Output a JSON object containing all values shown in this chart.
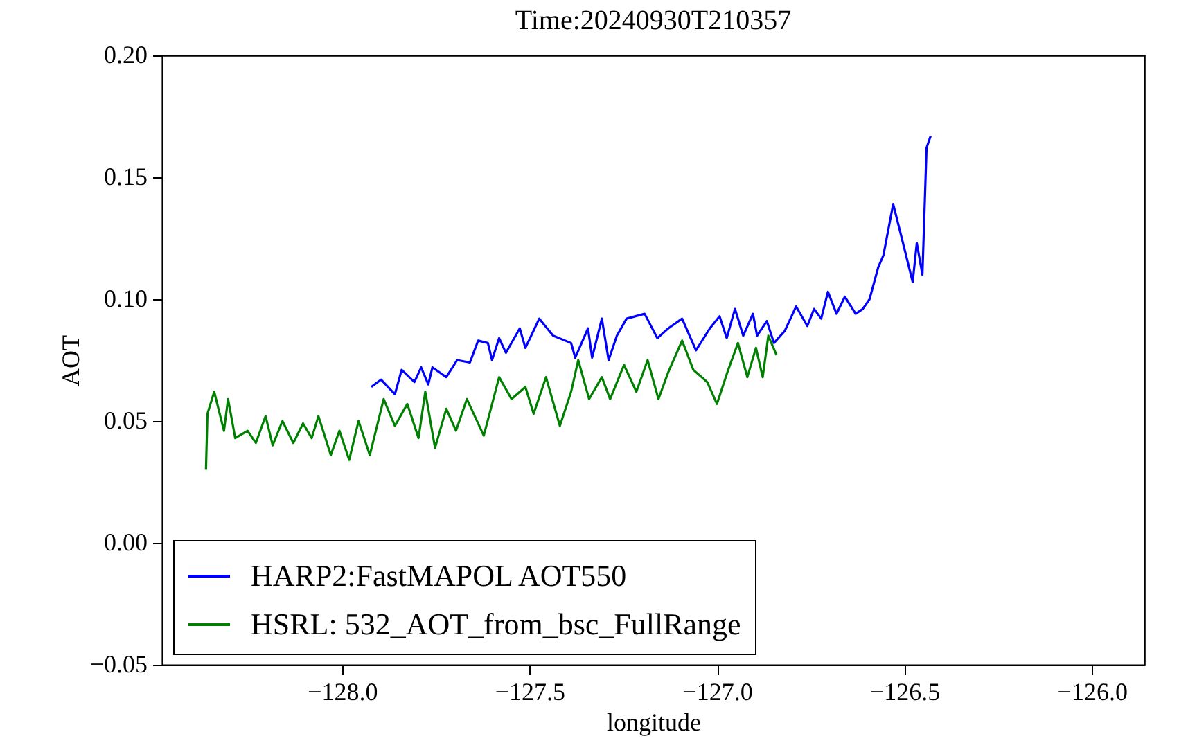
{
  "chart_data": {
    "type": "line",
    "title": "Time:20240930T210357",
    "xlabel": "longitude",
    "ylabel": "AOT",
    "xlim": [
      -128.48,
      -125.86
    ],
    "ylim": [
      -0.05,
      0.2
    ],
    "xticks": [
      {
        "value": -128,
        "label": "−128.0"
      },
      {
        "value": -127.5,
        "label": "−127.5"
      },
      {
        "value": -127,
        "label": "−127.0"
      },
      {
        "value": -126.5,
        "label": "−126.5"
      },
      {
        "value": -126,
        "label": "−126.0"
      }
    ],
    "yticks": [
      {
        "value": -0.05,
        "label": "−0.05"
      },
      {
        "value": 0,
        "label": "0.00"
      },
      {
        "value": 0.05,
        "label": "0.05"
      },
      {
        "value": 0.1,
        "label": "0.10"
      },
      {
        "value": 0.15,
        "label": "0.15"
      },
      {
        "value": 0.2,
        "label": "0.20"
      }
    ],
    "legend": "bottom left",
    "series": [
      {
        "name": "HARP2:FastMAPOL AOT550",
        "color": "#0000ff",
        "x": [
          -127.922,
          -127.896,
          -127.859,
          -127.841,
          -127.807,
          -127.789,
          -127.77,
          -127.759,
          -127.722,
          -127.693,
          -127.659,
          -127.637,
          -127.611,
          -127.6,
          -127.581,
          -127.563,
          -127.526,
          -127.511,
          -127.474,
          -127.437,
          -127.389,
          -127.378,
          -127.344,
          -127.333,
          -127.307,
          -127.289,
          -127.267,
          -127.241,
          -127.193,
          -127.159,
          -127.13,
          -127.093,
          -127.056,
          -127.019,
          -126.993,
          -126.974,
          -126.952,
          -126.93,
          -126.904,
          -126.893,
          -126.867,
          -126.848,
          -126.819,
          -126.789,
          -126.759,
          -126.741,
          -126.722,
          -126.704,
          -126.681,
          -126.659,
          -126.63,
          -126.611,
          -126.593,
          -126.57,
          -126.556,
          -126.53,
          -126.507,
          -126.478,
          -126.467,
          -126.452,
          -126.441,
          -126.43
        ],
        "values": [
          0.064,
          0.067,
          0.061,
          0.071,
          0.066,
          0.072,
          0.065,
          0.072,
          0.068,
          0.075,
          0.074,
          0.083,
          0.082,
          0.075,
          0.084,
          0.078,
          0.088,
          0.08,
          0.092,
          0.085,
          0.082,
          0.076,
          0.088,
          0.076,
          0.092,
          0.075,
          0.085,
          0.092,
          0.094,
          0.084,
          0.088,
          0.092,
          0.079,
          0.088,
          0.093,
          0.084,
          0.096,
          0.085,
          0.094,
          0.085,
          0.091,
          0.082,
          0.087,
          0.097,
          0.089,
          0.096,
          0.092,
          0.103,
          0.094,
          0.101,
          0.094,
          0.096,
          0.1,
          0.113,
          0.118,
          0.139,
          0.125,
          0.107,
          0.123,
          0.11,
          0.162,
          0.167
        ]
      },
      {
        "name": "HSRL: 532_AOT_from_bsc_FullRange",
        "color": "#008000",
        "x": [
          -128.363,
          -128.359,
          -128.341,
          -128.315,
          -128.304,
          -128.285,
          -128.252,
          -128.23,
          -128.204,
          -128.185,
          -128.159,
          -128.13,
          -128.104,
          -128.081,
          -128.063,
          -128.03,
          -128.007,
          -127.981,
          -127.956,
          -127.926,
          -127.889,
          -127.859,
          -127.826,
          -127.796,
          -127.778,
          -127.752,
          -127.722,
          -127.696,
          -127.667,
          -127.622,
          -127.581,
          -127.548,
          -127.511,
          -127.489,
          -127.456,
          -127.419,
          -127.389,
          -127.37,
          -127.341,
          -127.307,
          -127.285,
          -127.248,
          -127.215,
          -127.185,
          -127.156,
          -127.13,
          -127.093,
          -127.063,
          -127.026,
          -127.0,
          -126.97,
          -126.944,
          -126.919,
          -126.896,
          -126.878,
          -126.863,
          -126.841
        ],
        "values": [
          0.03,
          0.053,
          0.062,
          0.046,
          0.059,
          0.043,
          0.046,
          0.041,
          0.052,
          0.04,
          0.05,
          0.041,
          0.049,
          0.043,
          0.052,
          0.036,
          0.046,
          0.034,
          0.05,
          0.036,
          0.059,
          0.048,
          0.057,
          0.043,
          0.062,
          0.039,
          0.055,
          0.046,
          0.059,
          0.044,
          0.068,
          0.059,
          0.064,
          0.053,
          0.068,
          0.048,
          0.062,
          0.075,
          0.059,
          0.068,
          0.059,
          0.073,
          0.062,
          0.075,
          0.059,
          0.07,
          0.083,
          0.071,
          0.066,
          0.057,
          0.071,
          0.082,
          0.068,
          0.08,
          0.068,
          0.085,
          0.077
        ]
      }
    ]
  }
}
